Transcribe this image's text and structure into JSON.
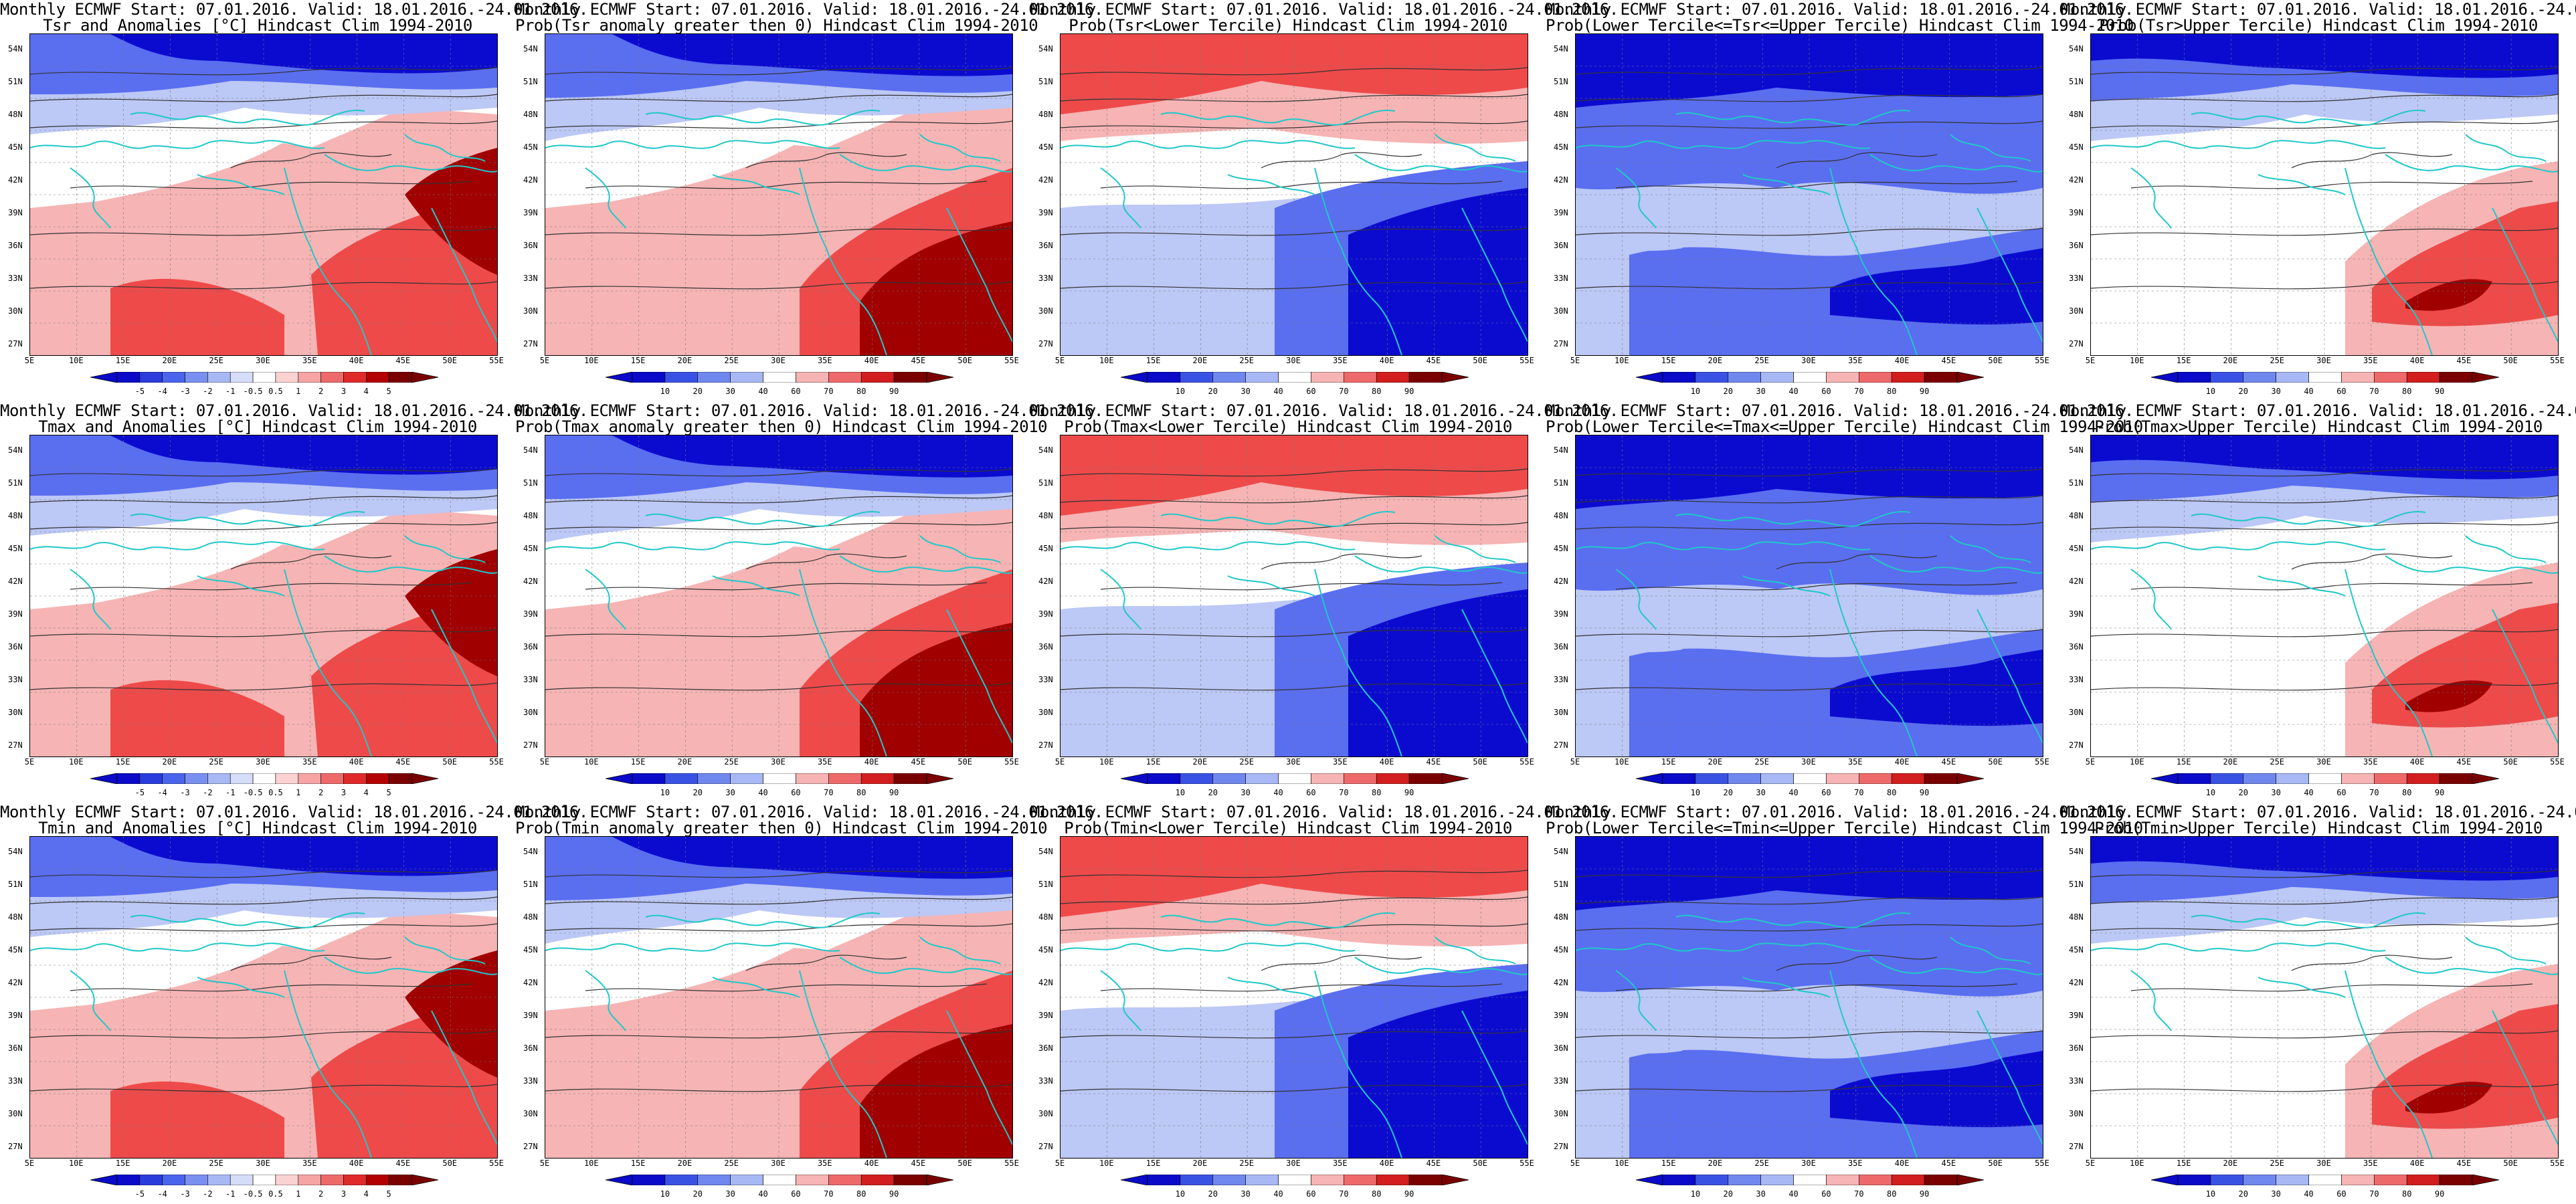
{
  "title_line1": "Monthly ECMWF Start: 07.01.2016. Valid: 18.01.2016.-24.01.2016.",
  "colors": {
    "map_background": "#ffffff",
    "coast": "#20c8c8",
    "contour": "#333333",
    "blue_dark": "#0b0bd0",
    "blue_mid": "#5a6ef0",
    "blue_light": "#bcc8f5",
    "red_light": "#f6b4b4",
    "red_mid": "#ee4a4a",
    "red_dark": "#a00000"
  },
  "lat_labels": [
    "54N",
    "51N",
    "48N",
    "45N",
    "42N",
    "39N",
    "36N",
    "33N",
    "30N",
    "27N"
  ],
  "lon_labels": [
    "5E",
    "10E",
    "15E",
    "20E",
    "25E",
    "30E",
    "35E",
    "40E",
    "45E",
    "50E",
    "55E"
  ],
  "anom_ticks": [
    "-5",
    "-4",
    "-3",
    "-2",
    "-1",
    "-0.5",
    "0.5",
    "1",
    "2",
    "3",
    "4",
    "5"
  ],
  "prob_ticks": [
    "10",
    "20",
    "30",
    "40",
    "60",
    "70",
    "80",
    "90"
  ],
  "rows": [
    {
      "var": "Tsr",
      "titles": [
        "Tsr and Anomalies [°C] Hindcast Clim 1994-2010",
        "Prob(Tsr anomaly greater then 0) Hindcast Clim 1994-2010",
        "Prob(Tsr<Lower Tercile) Hindcast Clim 1994-2010",
        "Prob(Lower Tercile<=Tsr<=Upper Tercile) Hindcast Clim 1994-2010",
        "Prob(Tsr>Upper Tercile) Hindcast Clim 1994-2010"
      ]
    },
    {
      "var": "Tmax",
      "titles": [
        "Tmax and Anomalies [°C] Hindcast Clim 1994-2010",
        "Prob(Tmax anomaly greater then 0) Hindcast Clim 1994-2010",
        "Prob(Tmax<Lower Tercile) Hindcast Clim 1994-2010",
        "Prob(Lower Tercile<=Tmax<=Upper Tercile) Hindcast Clim 1994-2010",
        "Prob(Tmax>Upper Tercile) Hindcast Clim 1994-2010"
      ]
    },
    {
      "var": "Tmin",
      "titles": [
        "Tmin and Anomalies [°C] Hindcast Clim 1994-2010",
        "Prob(Tmin anomaly greater then 0) Hindcast Clim 1994-2010",
        "Prob(Tmin<Lower Tercile) Hindcast Clim 1994-2010",
        "Prob(Lower Tercile<=Tmin<=Upper Tercile) Hindcast Clim 1994-2010",
        "Prob(Tmin>Upper Tercile) Hindcast Clim 1994-2010"
      ]
    }
  ],
  "panel_kinds": [
    "anomaly",
    "prob_positive",
    "prob_lower",
    "prob_middle",
    "prob_upper"
  ]
}
